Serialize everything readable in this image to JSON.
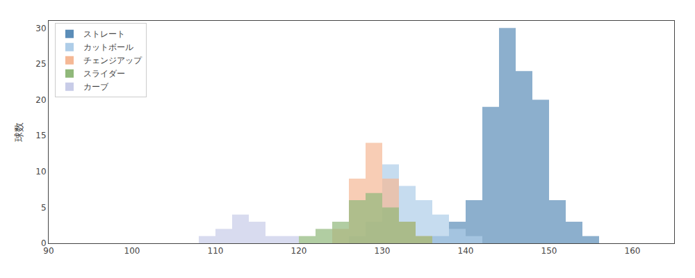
{
  "chart_data": {
    "type": "histogram",
    "ylabel": "球数",
    "xlim": [
      90,
      165
    ],
    "ylim": [
      0,
      31
    ],
    "xticks": [
      90,
      100,
      110,
      120,
      130,
      140,
      150,
      160
    ],
    "yticks": [
      0,
      5,
      10,
      15,
      20,
      25,
      30
    ],
    "grid": false,
    "legend": "upper left",
    "series": [
      {
        "name": "ストレート",
        "color": "#5b8db8",
        "bins": [
          136,
          138,
          140,
          142,
          144,
          146,
          148,
          150,
          152,
          154,
          156
        ],
        "values": [
          1,
          3,
          6,
          19,
          30,
          24,
          20,
          6,
          3,
          1
        ]
      },
      {
        "name": "カットボール",
        "color": "#aecde8",
        "bins": [
          126,
          128,
          130,
          132,
          134,
          136,
          138,
          140,
          142
        ],
        "values": [
          1,
          3,
          11,
          8,
          6,
          4,
          2,
          1
        ]
      },
      {
        "name": "チェンジアップ",
        "color": "#f5b895",
        "bins": [
          124,
          126,
          128,
          130,
          132,
          134,
          136
        ],
        "values": [
          2,
          9,
          14,
          9,
          3,
          1
        ]
      },
      {
        "name": "スライダー",
        "color": "#90b87a",
        "bins": [
          120,
          122,
          124,
          126,
          128,
          130,
          132,
          134,
          136
        ],
        "values": [
          1,
          2,
          3,
          6,
          7,
          5,
          3,
          1
        ]
      },
      {
        "name": "カーブ",
        "color": "#c8cce8",
        "bins": [
          108,
          110,
          112,
          114,
          116,
          118,
          120
        ],
        "values": [
          1,
          2,
          4,
          3,
          1,
          1
        ]
      }
    ]
  }
}
